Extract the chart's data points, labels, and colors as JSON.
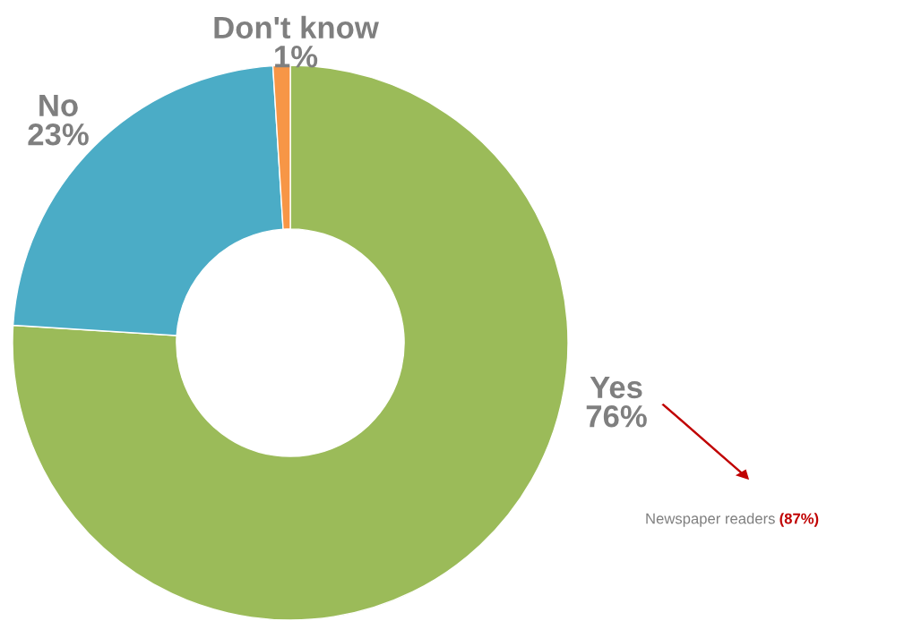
{
  "chart_data": {
    "type": "donut",
    "categories": [
      "Yes",
      "No",
      "Don't know"
    ],
    "values": [
      76,
      23,
      1
    ],
    "colors": [
      "#9bbb59",
      "#4bacc6",
      "#f79646"
    ],
    "value_labels": [
      "76%",
      "23%",
      "1%"
    ],
    "annotations": [
      "Newspaper readers",
      "(87%)"
    ],
    "legend": false
  }
}
